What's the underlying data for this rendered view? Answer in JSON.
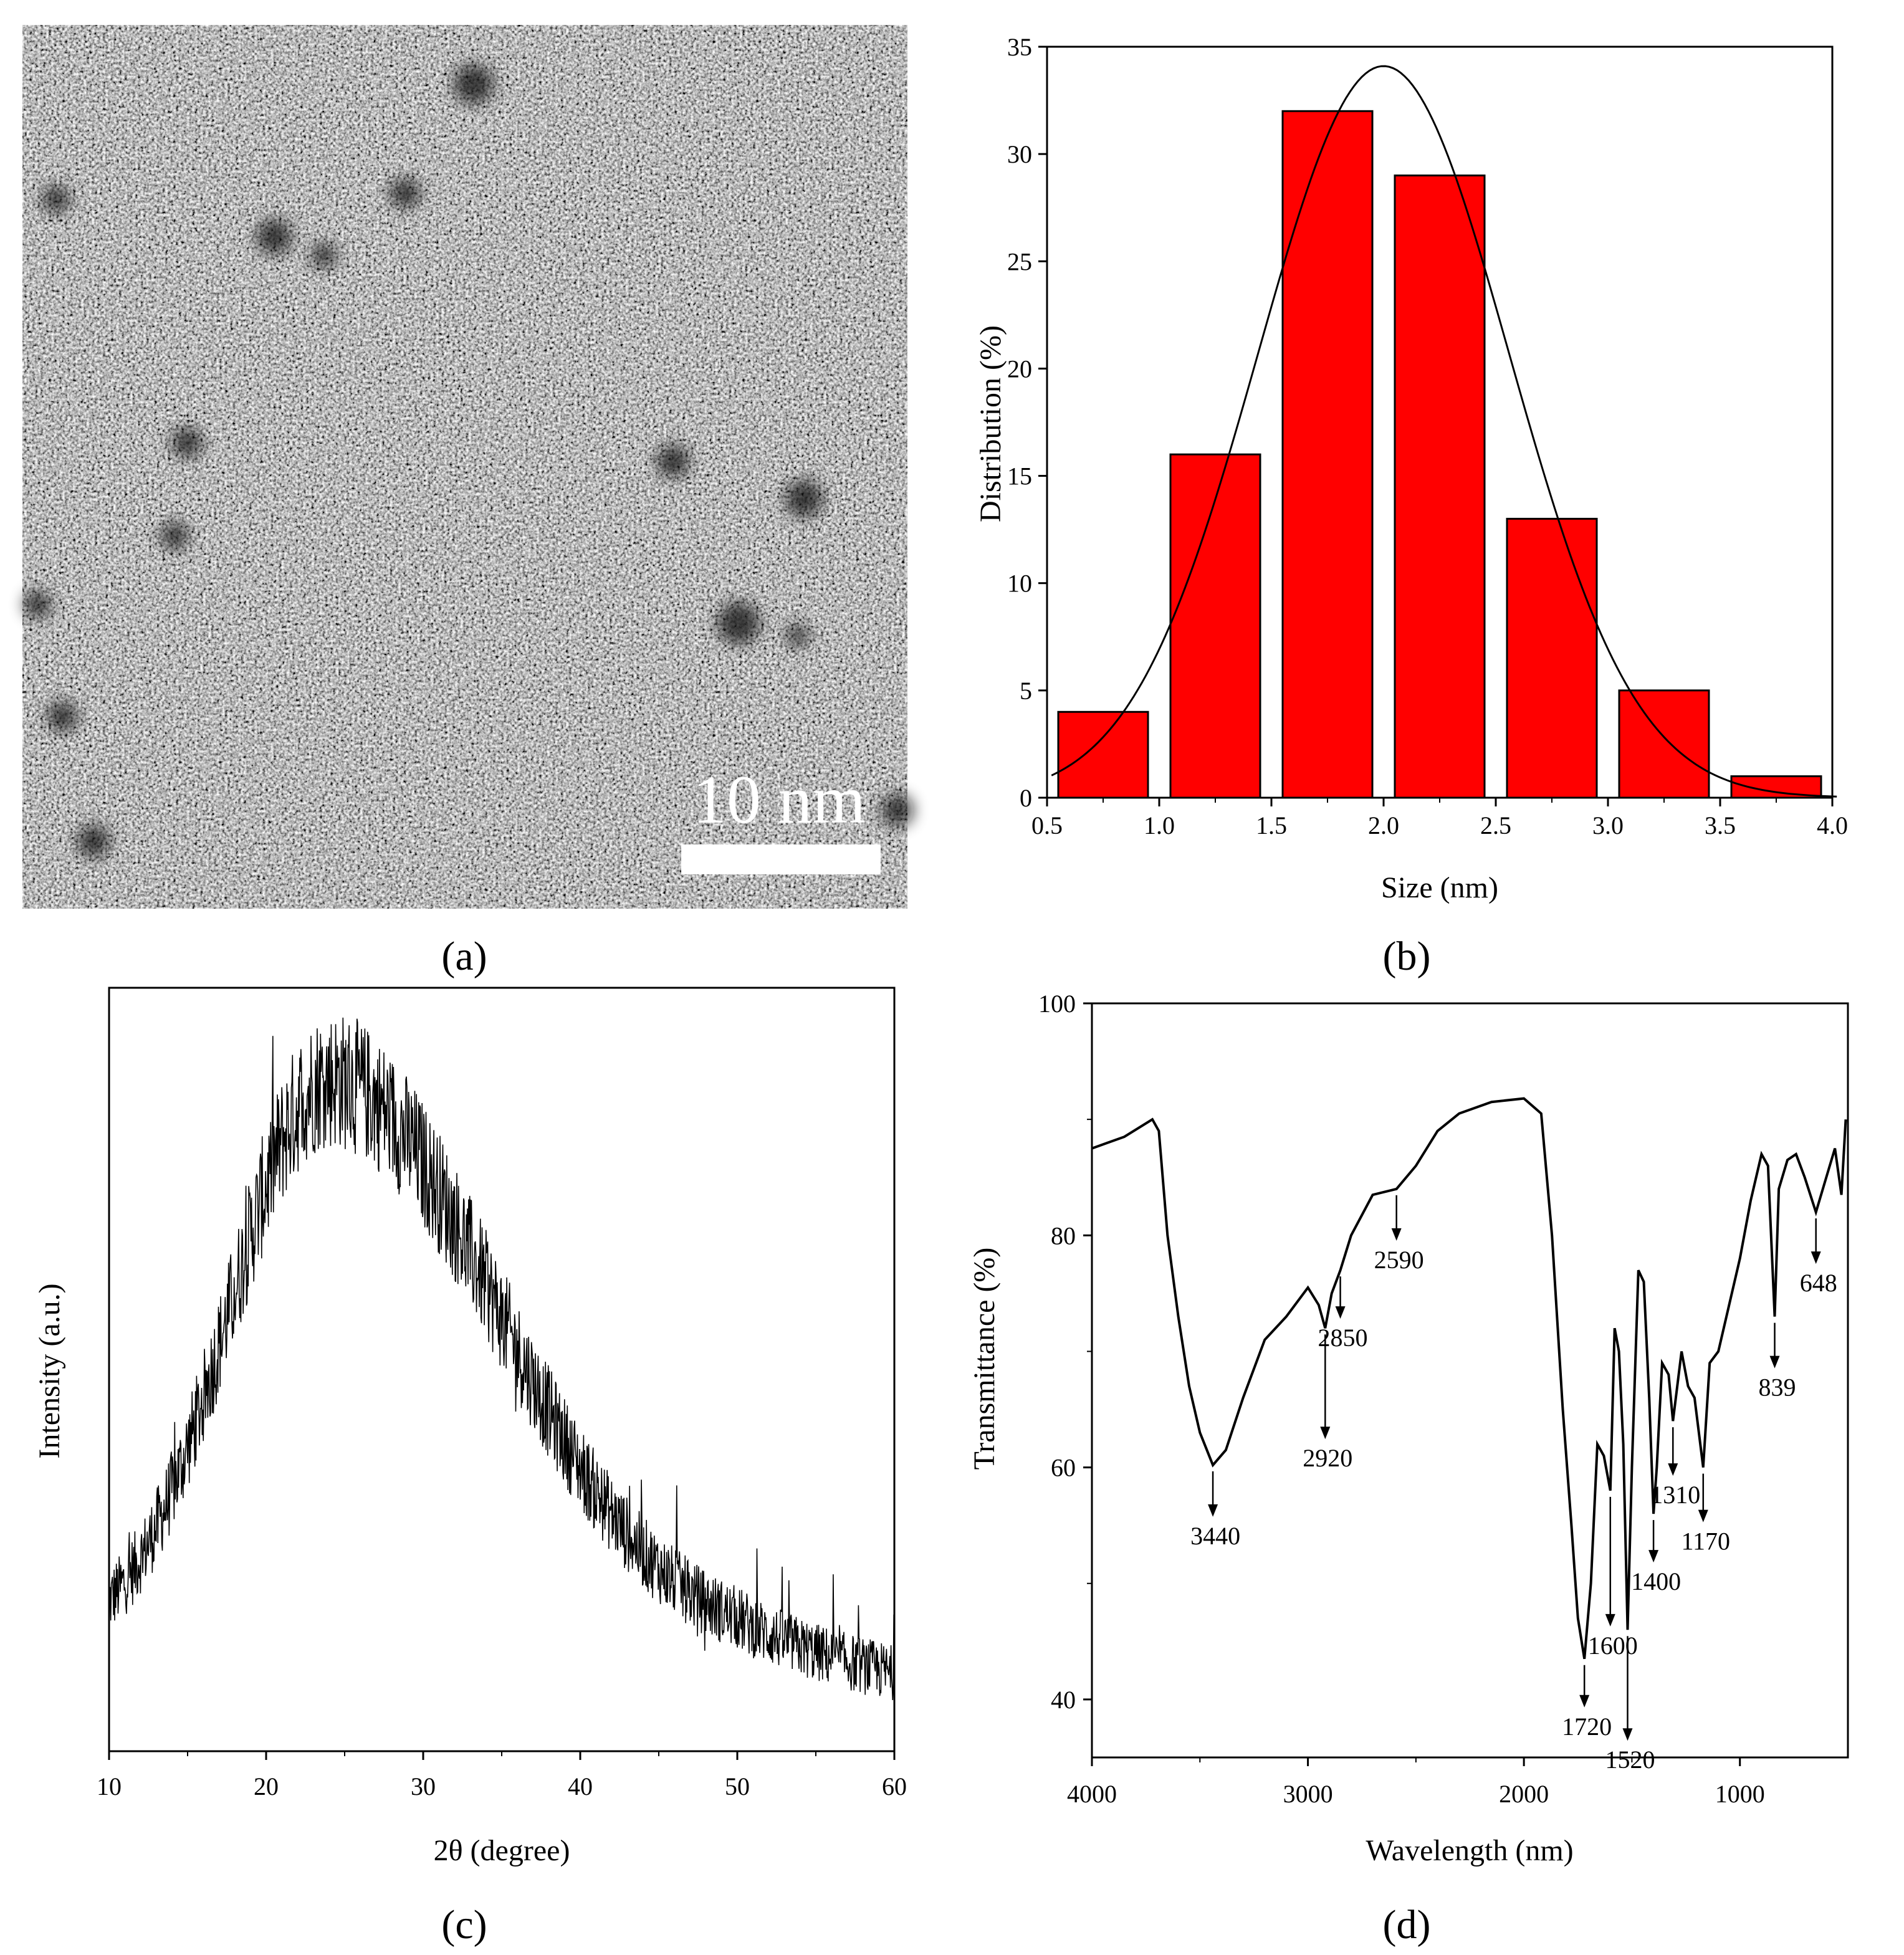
{
  "panel_a": {
    "caption": "(a)",
    "image": "TEM micrograph",
    "scale_bar_label": "10 nm"
  },
  "chart_data": [
    {
      "id": "b",
      "caption": "(b)",
      "type": "bar",
      "xlabel": "Size (nm)",
      "ylabel": "Distribution (%)",
      "xlim": [
        0.5,
        4.0
      ],
      "ylim": [
        0,
        35
      ],
      "xticks": [
        "0.5",
        "1.0",
        "1.5",
        "2.0",
        "2.5",
        "3.0",
        "3.5",
        "4.0"
      ],
      "yticks": [
        "0",
        "5",
        "10",
        "15",
        "20",
        "25",
        "30",
        "35"
      ],
      "bars": [
        {
          "from": 0.55,
          "to": 0.95,
          "value": 4
        },
        {
          "from": 1.05,
          "to": 1.45,
          "value": 16
        },
        {
          "from": 1.55,
          "to": 1.95,
          "value": 32
        },
        {
          "from": 2.05,
          "to": 2.45,
          "value": 29
        },
        {
          "from": 2.55,
          "to": 2.95,
          "value": 13
        },
        {
          "from": 3.05,
          "to": 3.45,
          "value": 5
        },
        {
          "from": 3.55,
          "to": 3.95,
          "value": 1
        }
      ],
      "fit": {
        "type": "gaussian",
        "center": 2.0,
        "peak": 34.1,
        "sigma": 0.56
      },
      "bar_color": "#ff0000"
    },
    {
      "id": "c",
      "caption": "(c)",
      "type": "line",
      "xlabel": "2θ (degree)",
      "ylabel": "Intensity (a.u.)",
      "xlim": [
        10,
        60
      ],
      "xticks": [
        "10",
        "20",
        "30",
        "40",
        "50",
        "60"
      ],
      "broad_peak_center": 24
    },
    {
      "id": "d",
      "caption": "(d)",
      "type": "line",
      "xlabel": "Wavelength (nm)",
      "ylabel": "Transmittance (%)",
      "xlim": [
        4000,
        500
      ],
      "ylim": [
        35,
        100
      ],
      "xticks": [
        "4000",
        "3000",
        "2000",
        "1000"
      ],
      "yticks": [
        "40",
        "60",
        "80",
        "100"
      ],
      "points": [
        [
          4000,
          87.5
        ],
        [
          3850,
          88.5
        ],
        [
          3720,
          90
        ],
        [
          3690,
          89
        ],
        [
          3650,
          80
        ],
        [
          3600,
          73
        ],
        [
          3550,
          67
        ],
        [
          3500,
          63
        ],
        [
          3440,
          60.2
        ],
        [
          3380,
          61.5
        ],
        [
          3300,
          66
        ],
        [
          3200,
          71
        ],
        [
          3100,
          73
        ],
        [
          3000,
          75.5
        ],
        [
          2950,
          74
        ],
        [
          2920,
          72
        ],
        [
          2890,
          75
        ],
        [
          2850,
          77
        ],
        [
          2800,
          80
        ],
        [
          2700,
          83.5
        ],
        [
          2590,
          84
        ],
        [
          2500,
          86
        ],
        [
          2400,
          89
        ],
        [
          2300,
          90.5
        ],
        [
          2150,
          91.5
        ],
        [
          2000,
          91.8
        ],
        [
          1920,
          90.5
        ],
        [
          1870,
          80
        ],
        [
          1820,
          65
        ],
        [
          1780,
          55
        ],
        [
          1750,
          47
        ],
        [
          1720,
          43.5
        ],
        [
          1690,
          50
        ],
        [
          1660,
          62
        ],
        [
          1630,
          61
        ],
        [
          1600,
          58
        ],
        [
          1580,
          72
        ],
        [
          1560,
          70
        ],
        [
          1540,
          62
        ],
        [
          1520,
          46
        ],
        [
          1500,
          60
        ],
        [
          1470,
          77
        ],
        [
          1445,
          76
        ],
        [
          1420,
          66
        ],
        [
          1400,
          56
        ],
        [
          1385,
          60
        ],
        [
          1360,
          69
        ],
        [
          1330,
          68
        ],
        [
          1310,
          64
        ],
        [
          1290,
          67
        ],
        [
          1270,
          70
        ],
        [
          1240,
          67
        ],
        [
          1210,
          66
        ],
        [
          1170,
          60
        ],
        [
          1140,
          69
        ],
        [
          1100,
          70
        ],
        [
          1050,
          74
        ],
        [
          1000,
          78
        ],
        [
          950,
          83
        ],
        [
          900,
          87
        ],
        [
          870,
          86
        ],
        [
          839,
          73
        ],
        [
          820,
          84
        ],
        [
          780,
          86.5
        ],
        [
          740,
          87
        ],
        [
          700,
          85
        ],
        [
          648,
          82
        ],
        [
          600,
          85
        ],
        [
          560,
          87.5
        ],
        [
          530,
          83.5
        ],
        [
          510,
          90
        ]
      ],
      "annotations": [
        {
          "label": "3440",
          "x": 3440,
          "y": 60.2
        },
        {
          "label": "2920",
          "x": 2920,
          "y": 72
        },
        {
          "label": "2850",
          "x": 2850,
          "y": 77
        },
        {
          "label": "2590",
          "x": 2590,
          "y": 84
        },
        {
          "label": "1720",
          "x": 1720,
          "y": 43.5
        },
        {
          "label": "1600",
          "x": 1600,
          "y": 58
        },
        {
          "label": "1520",
          "x": 1520,
          "y": 46
        },
        {
          "label": "1400",
          "x": 1400,
          "y": 56
        },
        {
          "label": "1310",
          "x": 1310,
          "y": 64
        },
        {
          "label": "1170",
          "x": 1170,
          "y": 60
        },
        {
          "label": "839",
          "x": 839,
          "y": 73
        },
        {
          "label": "648",
          "x": 648,
          "y": 82
        }
      ]
    }
  ]
}
